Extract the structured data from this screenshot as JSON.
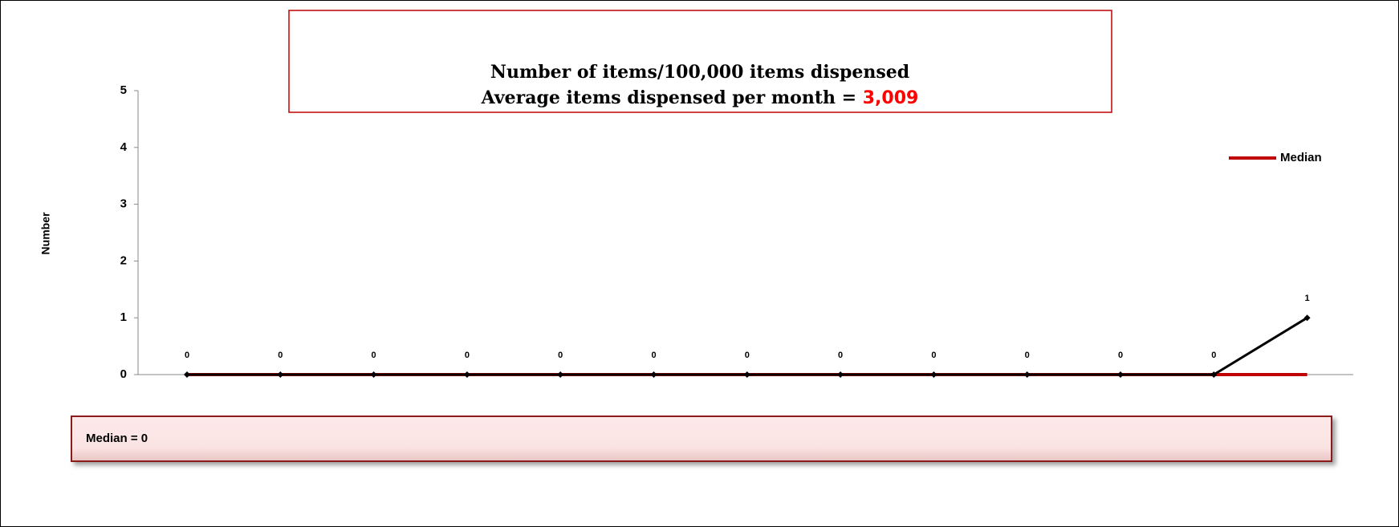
{
  "chart_data": {
    "type": "line",
    "title": "Number of items/100,000 items dispensed",
    "subtitle": "Average items dispensed per month =",
    "subtitle_value": "3,009",
    "ylabel": "Number",
    "categories": [
      null,
      null,
      null,
      null,
      null,
      null,
      null,
      null,
      null,
      null,
      null,
      null,
      null
    ],
    "series": [
      {
        "color": "#000000",
        "values": [
          0,
          0,
          0,
          0,
          0,
          0,
          0,
          0,
          0,
          0,
          0,
          0,
          1
        ],
        "data_labels": true
      },
      {
        "name": "Median",
        "color": "#c00000",
        "values": [
          0,
          0,
          0,
          0,
          0,
          0,
          0,
          0,
          0,
          0,
          0,
          0,
          0
        ]
      }
    ],
    "ylim": [
      0,
      5
    ],
    "yticks": [
      0,
      1,
      2,
      3,
      4,
      5
    ],
    "grid": false,
    "legend": "right",
    "annotation": "Median = 0"
  }
}
